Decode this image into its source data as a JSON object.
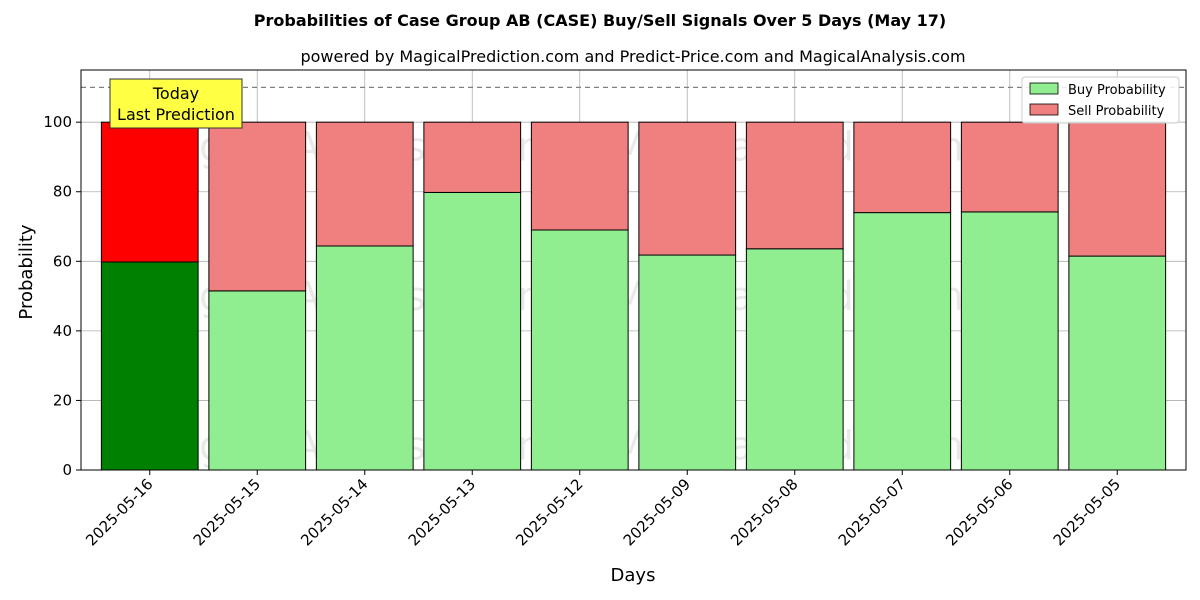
{
  "chart_data": {
    "type": "bar",
    "stacked": true,
    "title": "Probabilities of Case Group AB (CASE) Buy/Sell Signals Over 5 Days (May 17)",
    "subtitle": "powered by MagicalPrediction.com and Predict-Price.com and MagicalAnalysis.com",
    "xlabel": "Days",
    "ylabel": "Probability",
    "ylim": [
      0,
      115
    ],
    "yticks": [
      0,
      20,
      40,
      60,
      80,
      100
    ],
    "grid": true,
    "legend_position": "top-right",
    "categories": [
      "2025-05-16",
      "2025-05-15",
      "2025-05-14",
      "2025-05-13",
      "2025-05-12",
      "2025-05-09",
      "2025-05-08",
      "2025-05-07",
      "2025-05-06",
      "2025-05-05"
    ],
    "series": [
      {
        "name": "Buy Probability",
        "values": [
          59.8,
          51.5,
          64.4,
          79.8,
          69.0,
          61.8,
          63.6,
          74.0,
          74.2,
          61.5
        ]
      },
      {
        "name": "Sell Probability",
        "values": [
          40.2,
          48.5,
          35.6,
          20.2,
          31.0,
          38.2,
          36.4,
          26.0,
          25.8,
          38.5
        ]
      }
    ],
    "highlight_index": 0,
    "colors": {
      "buy": "#90ee90",
      "sell": "#f08080",
      "buy_highlight": "#008000",
      "sell_highlight": "#ff0000",
      "annotation_bg": "#ffff44"
    },
    "reference_line": 110,
    "annotation": {
      "line1": "Today",
      "line2": "Last Prediction"
    },
    "watermarks": [
      "MagicalAnalysis.com",
      "MagicalPrediction.com"
    ]
  }
}
